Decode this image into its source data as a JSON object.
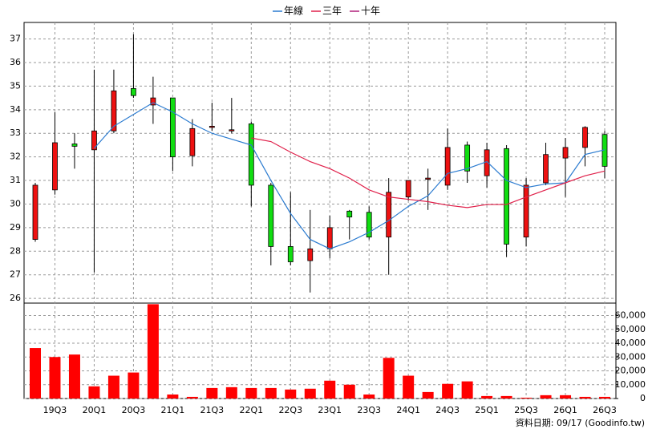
{
  "chart_data": [
    {
      "type": "candlestick",
      "categories": [
        null,
        "19Q3",
        null,
        "20Q1",
        null,
        "20Q3",
        null,
        "21Q1",
        null,
        "21Q3",
        null,
        "22Q1",
        null,
        "22Q3",
        null,
        "23Q1",
        null,
        "23Q3",
        null,
        "24Q1",
        null,
        "24Q3",
        null,
        "25Q1",
        null,
        "25Q3",
        null,
        "26Q1",
        null,
        "26Q3"
      ],
      "open": [
        28.5,
        30.6,
        32.55,
        32.3,
        33.1,
        34.9,
        34.2,
        34.5,
        32.05,
        33.25,
        33.1,
        33.4,
        30.8,
        28.2,
        27.6,
        28.1,
        29.7,
        29.65,
        28.6,
        30.3,
        31.05,
        30.8,
        32.5,
        31.2,
        32.35,
        28.6,
        30.9,
        31.95,
        32.4,
        32.95
      ],
      "high": [
        30.9,
        33.9,
        33.0,
        35.7,
        35.7,
        37.2,
        35.4,
        34.5,
        33.6,
        34.3,
        34.5,
        33.5,
        30.9,
        30.5,
        29.75,
        29.5,
        29.75,
        29.9,
        31.1,
        31.0,
        31.5,
        33.2,
        32.65,
        32.6,
        32.5,
        31.1,
        32.6,
        32.8,
        33.3,
        33.1
      ],
      "low": [
        28.4,
        30.4,
        31.5,
        27.1,
        33.0,
        34.5,
        33.4,
        31.4,
        31.6,
        33.1,
        33.0,
        29.9,
        27.4,
        27.4,
        26.25,
        27.7,
        28.5,
        28.5,
        27.0,
        30.15,
        29.75,
        30.6,
        30.9,
        30.7,
        27.75,
        28.2,
        30.8,
        30.3,
        31.6,
        31.1
      ],
      "close": [
        30.8,
        32.6,
        32.45,
        33.1,
        34.8,
        34.6,
        34.5,
        32.0,
        33.2,
        33.3,
        33.15,
        30.8,
        28.2,
        27.55,
        28.1,
        29.0,
        29.45,
        28.6,
        30.5,
        31.0,
        31.1,
        32.4,
        31.4,
        32.3,
        28.3,
        30.8,
        32.1,
        32.4,
        33.25,
        31.6
      ],
      "up_color": "#ee1111",
      "down_color": "#11dd11",
      "series": [
        {
          "name": "年線",
          "color": "#2b7bd0",
          "values": [
            null,
            null,
            null,
            32.36,
            33.3,
            33.8,
            34.3,
            33.9,
            33.4,
            33.0,
            32.75,
            32.5,
            31.0,
            29.6,
            28.5,
            28.1,
            28.4,
            28.8,
            29.3,
            29.9,
            30.35,
            31.3,
            31.5,
            31.8,
            31.0,
            30.7,
            30.85,
            30.9,
            32.1,
            32.3
          ]
        },
        {
          "name": "三年",
          "color": "#e0204a",
          "values": [
            null,
            null,
            null,
            null,
            null,
            null,
            null,
            null,
            null,
            null,
            null,
            32.8,
            32.65,
            32.2,
            31.8,
            31.5,
            31.1,
            30.6,
            30.3,
            30.2,
            30.1,
            29.95,
            29.85,
            29.98,
            29.98,
            30.3,
            30.6,
            30.9,
            31.2,
            31.4
          ]
        },
        {
          "name": "十年",
          "color": "#b0207a",
          "values": [
            null,
            null,
            null,
            null,
            null,
            null,
            null,
            null,
            null,
            null,
            null,
            null,
            null,
            null,
            null,
            null,
            null,
            null,
            null,
            null,
            null,
            null,
            null,
            null,
            null,
            null,
            null,
            null,
            null,
            null
          ]
        }
      ],
      "ylim": [
        25.8,
        37.7
      ],
      "yticks": [
        26,
        27,
        28,
        29,
        30,
        31,
        32,
        33,
        34,
        35,
        36,
        37
      ],
      "grid": true,
      "legend": "top"
    },
    {
      "type": "bar",
      "color": "#ff0000",
      "values": [
        36500,
        30000,
        31800,
        8800,
        16500,
        18800,
        68200,
        2900,
        1200,
        7600,
        8200,
        7600,
        7600,
        6500,
        7100,
        12900,
        10000,
        2900,
        29400,
        16500,
        4700,
        10600,
        12400,
        1800,
        1800,
        600,
        2400,
        2400,
        1200,
        1200
      ],
      "ylim": [
        0,
        69000
      ],
      "yticks": [
        0,
        {
          "value": 10000,
          "label": "10,000"
        },
        {
          "value": 20000,
          "label": "20,000"
        },
        {
          "value": 30000,
          "label": "30,000"
        },
        {
          "value": 40000,
          "label": "40,000"
        },
        {
          "value": 50000,
          "label": "50,000"
        },
        {
          "value": 60000,
          "label": "60,000"
        }
      ],
      "grid": true
    }
  ],
  "source": "資料日期: 09/17  (Goodinfo.tw)"
}
